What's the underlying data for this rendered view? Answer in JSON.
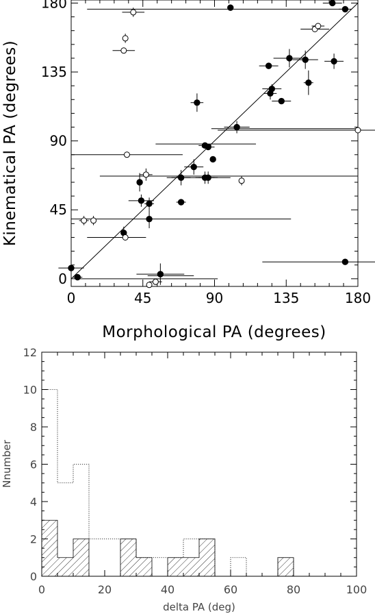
{
  "chart_data": [
    {
      "type": "scatter",
      "xlabel": "Morphological PA (degrees)",
      "ylabel": "Kinematical PA (degrees)",
      "xlim": [
        0,
        180
      ],
      "ylim": [
        -5,
        182
      ],
      "xticks": [
        "0",
        "45",
        "90",
        "135",
        "180"
      ],
      "yticks": [
        "0",
        "45",
        "90",
        "135",
        "180"
      ],
      "reference_line": {
        "from": [
          0,
          0
        ],
        "to": [
          180,
          180
        ]
      },
      "series": [
        {
          "marker": "filled-circle",
          "points": [
            {
              "x": 0,
              "y": 7,
              "xerr": 8,
              "yerr": 0
            },
            {
              "x": 4,
              "y": 1,
              "xerr": 3,
              "yerr": 2
            },
            {
              "x": 100,
              "y": 177,
              "xerr": 0,
              "yerr": 2
            },
            {
              "x": 164,
              "y": 180,
              "xerr": 6,
              "yerr": 0
            },
            {
              "x": 172,
              "y": 176,
              "xerr": 4,
              "yerr": 0
            },
            {
              "x": 137,
              "y": 144,
              "xerr": 10,
              "yerr": 6
            },
            {
              "x": 124,
              "y": 139,
              "xerr": 6,
              "yerr": 0
            },
            {
              "x": 147,
              "y": 143,
              "xerr": 8,
              "yerr": 6
            },
            {
              "x": 165,
              "y": 142,
              "xerr": 6,
              "yerr": 5
            },
            {
              "x": 126,
              "y": 124,
              "xerr": 6,
              "yerr": 3
            },
            {
              "x": 125,
              "y": 121,
              "xerr": 4,
              "yerr": 4
            },
            {
              "x": 149,
              "y": 128,
              "xerr": 3,
              "yerr": 8
            },
            {
              "x": 132,
              "y": 116,
              "xerr": 6,
              "yerr": 0
            },
            {
              "x": 79,
              "y": 115,
              "xerr": 4,
              "yerr": 6
            },
            {
              "x": 104,
              "y": 99,
              "xerr": 8,
              "yerr": 4
            },
            {
              "x": 84,
              "y": 87,
              "xerr": 4,
              "yerr": 0
            },
            {
              "x": 86,
              "y": 86,
              "xerr": 4,
              "yerr": 0
            },
            {
              "x": 89,
              "y": 78,
              "xerr": 0,
              "yerr": 2
            },
            {
              "x": 77,
              "y": 73,
              "xerr": 6,
              "yerr": 5
            },
            {
              "x": 69,
              "y": 66,
              "xerr": 6,
              "yerr": 5
            },
            {
              "x": 84,
              "y": 66,
              "xerr": 6,
              "yerr": 4
            },
            {
              "x": 86,
              "y": 66,
              "xerr": 6,
              "yerr": 4
            },
            {
              "x": 43,
              "y": 63,
              "xerr": 0,
              "yerr": 6
            },
            {
              "x": 44,
              "y": 51,
              "xerr": 8,
              "yerr": 4
            },
            {
              "x": 49,
              "y": 49,
              "xerr": 3,
              "yerr": 4
            },
            {
              "x": 69,
              "y": 50,
              "xerr": 3,
              "yerr": 2
            },
            {
              "x": 49,
              "y": 39,
              "xerr": 0,
              "yerr": 6
            },
            {
              "x": 33,
              "y": 30,
              "xerr": 0,
              "yerr": 4
            },
            {
              "x": 56,
              "y": 3,
              "xerr": 15,
              "yerr": 7
            },
            {
              "x": 172,
              "y": 11,
              "xerr": 52,
              "yerr": 0
            }
          ]
        },
        {
          "marker": "open-circle",
          "points": [
            {
              "x": 39,
              "y": 174,
              "xerr": 7,
              "yerr": 3
            },
            {
              "x": 34,
              "y": 157,
              "xerr": 0,
              "yerr": 3
            },
            {
              "x": 33,
              "y": 149,
              "xerr": 7,
              "yerr": 0
            },
            {
              "x": 153,
              "y": 163,
              "xerr": 9,
              "yerr": 0
            },
            {
              "x": 155,
              "y": 165,
              "xerr": 4,
              "yerr": 2
            },
            {
              "x": 180,
              "y": 97,
              "xerr": 88,
              "yerr": 0
            },
            {
              "x": 35,
              "y": 81,
              "xerr": 35,
              "yerr": 0
            },
            {
              "x": 47,
              "y": 68,
              "xerr": 4,
              "yerr": 4
            },
            {
              "x": 107,
              "y": 64,
              "xerr": 0,
              "yerr": 3
            },
            {
              "x": 8,
              "y": 38,
              "xerr": 3,
              "yerr": 3
            },
            {
              "x": 14,
              "y": 38,
              "xerr": 0,
              "yerr": 3
            },
            {
              "x": 34,
              "y": 27,
              "xerr": 0,
              "yerr": 0
            },
            {
              "x": 53,
              "y": -2,
              "xerr": 4,
              "yerr": 2
            },
            {
              "x": 49,
              "y": -4,
              "xerr": 0,
              "yerr": 0
            }
          ]
        }
      ],
      "wide_error_bars": [
        {
          "y": 176,
          "x1": 10,
          "x2": 172
        },
        {
          "y": 67,
          "x1": 18,
          "x2": 180
        },
        {
          "y": 39,
          "x1": 0,
          "x2": 138
        },
        {
          "y": 27,
          "x1": 10,
          "x2": 47
        },
        {
          "y": 0,
          "x1": 2,
          "x2": 92
        },
        {
          "y": 88,
          "x1": 53,
          "x2": 116
        },
        {
          "y": 98,
          "x1": 88,
          "x2": 180
        },
        {
          "y": 66,
          "x1": 60,
          "x2": 100
        },
        {
          "y": 2,
          "x1": 48,
          "x2": 77
        }
      ]
    },
    {
      "type": "bar",
      "xlabel": "delta PA (deg)",
      "ylabel": "Nnumber",
      "xlim": [
        0,
        100
      ],
      "ylim": [
        0,
        12
      ],
      "xticks": [
        "0",
        "20",
        "40",
        "60",
        "80",
        "100"
      ],
      "yticks": [
        "0",
        "2",
        "4",
        "6",
        "8",
        "10",
        "12"
      ],
      "bin_edges": [
        0,
        5,
        10,
        15,
        20,
        25,
        30,
        35,
        40,
        45,
        50,
        55,
        60,
        65,
        70,
        75,
        80
      ],
      "series": [
        {
          "style": "dotted-outline",
          "values": [
            10,
            5,
            6,
            2,
            2,
            2,
            1,
            1,
            1,
            2,
            2,
            0,
            1,
            0,
            0,
            1
          ]
        },
        {
          "style": "hatched",
          "values": [
            3,
            1,
            2,
            0,
            0,
            2,
            1,
            0,
            1,
            1,
            2,
            0,
            0,
            0,
            0,
            1
          ]
        }
      ]
    }
  ]
}
